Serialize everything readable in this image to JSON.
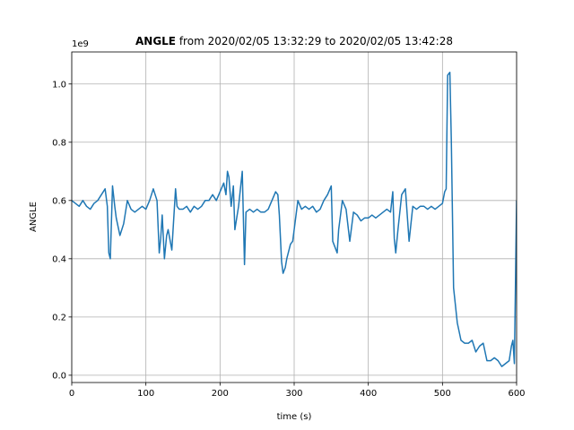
{
  "chart_data": {
    "type": "line",
    "title_bold": "ANGLE",
    "title_rest": " from 2020/02/05 13:32:29 to 2020/02/05 13:42:28",
    "xlabel": "time (s)",
    "ylabel": "ANGLE",
    "offset_text": "1e9",
    "xlim": [
      0,
      600
    ],
    "ylim": [
      -0.025,
      1.11
    ],
    "x_ticks": [
      0,
      100,
      200,
      300,
      400,
      500,
      600
    ],
    "x_tick_labels": [
      "0",
      "100",
      "200",
      "300",
      "400",
      "500",
      "600"
    ],
    "y_ticks": [
      0.0,
      0.2,
      0.4,
      0.6,
      0.8,
      1.0
    ],
    "y_tick_labels": [
      "0.0",
      "0.2",
      "0.4",
      "0.6",
      "0.8",
      "1.0"
    ],
    "grid": true,
    "line_color": "#1f77b4",
    "series": [
      {
        "x": [
          0,
          5,
          10,
          15,
          20,
          25,
          30,
          35,
          40,
          45,
          48,
          50,
          52,
          55,
          58,
          60,
          65,
          70,
          75,
          80,
          85,
          90,
          95,
          100,
          105,
          110,
          115,
          118,
          120,
          122,
          125,
          128,
          130,
          135,
          140,
          142,
          145,
          150,
          155,
          160,
          165,
          170,
          175,
          180,
          185,
          190,
          195,
          200,
          205,
          208,
          210,
          212,
          215,
          218,
          220,
          225,
          230,
          233,
          235,
          240,
          245,
          250,
          255,
          260,
          265,
          270,
          275,
          278,
          280,
          283,
          285,
          288,
          290,
          292,
          295,
          298,
          300,
          305,
          310,
          315,
          320,
          325,
          330,
          335,
          340,
          345,
          350,
          352,
          355,
          358,
          360,
          365,
          370,
          375,
          380,
          385,
          390,
          395,
          400,
          405,
          410,
          415,
          420,
          425,
          430,
          433,
          435,
          437,
          440,
          445,
          450,
          455,
          460,
          465,
          470,
          475,
          480,
          485,
          490,
          495,
          500,
          503,
          505,
          507,
          510,
          512,
          515,
          520,
          525,
          530,
          535,
          540,
          545,
          550,
          555,
          560,
          565,
          570,
          575,
          580,
          585,
          590,
          593,
          595,
          597,
          600
        ],
        "y": [
          0.6,
          0.59,
          0.58,
          0.6,
          0.58,
          0.57,
          0.59,
          0.6,
          0.62,
          0.64,
          0.58,
          0.42,
          0.4,
          0.65,
          0.58,
          0.54,
          0.48,
          0.52,
          0.6,
          0.57,
          0.56,
          0.57,
          0.58,
          0.57,
          0.6,
          0.64,
          0.6,
          0.42,
          0.47,
          0.55,
          0.4,
          0.48,
          0.5,
          0.43,
          0.64,
          0.58,
          0.57,
          0.57,
          0.58,
          0.56,
          0.58,
          0.57,
          0.58,
          0.6,
          0.6,
          0.62,
          0.6,
          0.63,
          0.66,
          0.62,
          0.7,
          0.68,
          0.58,
          0.65,
          0.5,
          0.58,
          0.7,
          0.38,
          0.56,
          0.57,
          0.56,
          0.57,
          0.56,
          0.56,
          0.57,
          0.6,
          0.63,
          0.62,
          0.55,
          0.39,
          0.35,
          0.37,
          0.4,
          0.42,
          0.45,
          0.46,
          0.5,
          0.6,
          0.57,
          0.58,
          0.57,
          0.58,
          0.56,
          0.57,
          0.6,
          0.62,
          0.65,
          0.46,
          0.44,
          0.42,
          0.5,
          0.6,
          0.57,
          0.46,
          0.56,
          0.55,
          0.53,
          0.54,
          0.54,
          0.55,
          0.54,
          0.55,
          0.56,
          0.57,
          0.56,
          0.63,
          0.47,
          0.42,
          0.5,
          0.62,
          0.64,
          0.46,
          0.58,
          0.57,
          0.58,
          0.58,
          0.57,
          0.58,
          0.57,
          0.58,
          0.59,
          0.63,
          0.64,
          1.03,
          1.04,
          0.8,
          0.3,
          0.18,
          0.12,
          0.11,
          0.11,
          0.12,
          0.08,
          0.1,
          0.11,
          0.05,
          0.05,
          0.06,
          0.05,
          0.03,
          0.04,
          0.05,
          0.1,
          0.12,
          0.04,
          0.6
        ]
      }
    ]
  }
}
